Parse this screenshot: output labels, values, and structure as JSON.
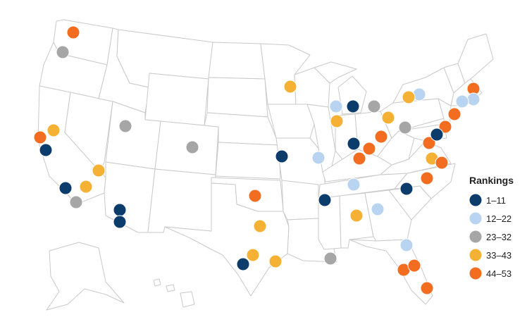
{
  "legend": {
    "title": "Rankings",
    "items": [
      {
        "label": "1–11",
        "color": "#0b3c6b"
      },
      {
        "label": "12–22",
        "color": "#b8d4f1"
      },
      {
        "label": "23–32",
        "color": "#a6a6a6"
      },
      {
        "label": "33–43",
        "color": "#f5b133"
      },
      {
        "label": "44–53",
        "color": "#f36d21"
      }
    ]
  },
  "markers": [
    {
      "tier": 3
    },
    {
      "tier": 1
    },
    {
      "tier": 4
    },
    {
      "tier": 2
    },
    {
      "tier": 4
    },
    {
      "tier": 4
    },
    {
      "tier": 2
    },
    {
      "tier": 2
    },
    {
      "tier": 2
    },
    {
      "tier": 3
    },
    {
      "tier": 3
    },
    {
      "tier": 1
    },
    {
      "tier": 3
    },
    {
      "tier": 1
    },
    {
      "tier": 2
    },
    {
      "tier": 3
    },
    {
      "tier": 4
    },
    {
      "tier": 0
    },
    {
      "tier": 0
    },
    {
      "tier": 1
    },
    {
      "tier": 0
    },
    {
      "tier": 4
    },
    {
      "tier": 3
    },
    {
      "tier": 3
    },
    {
      "tier": 3
    },
    {
      "tier": 2
    },
    {
      "tier": 0
    },
    {
      "tier": 4
    },
    {
      "tier": 1
    },
    {
      "tier": 3
    },
    {
      "tier": 1
    },
    {
      "tier": 0
    },
    {
      "tier": 0
    },
    {
      "tier": 3
    },
    {
      "tier": 0
    },
    {
      "tier": 0
    },
    {
      "tier": 1
    },
    {
      "tier": 2
    },
    {
      "tier": 4
    },
    {
      "tier": 4
    },
    {
      "tier": 4
    },
    {
      "tier": 4
    },
    {
      "tier": 3
    },
    {
      "tier": 4
    },
    {
      "tier": 4
    },
    {
      "tier": 1
    },
    {
      "tier": 0
    },
    {
      "tier": 4
    },
    {
      "tier": 4
    },
    {
      "tier": 4
    },
    {
      "tier": 0
    },
    {
      "tier": 3
    },
    {
      "tier": 0
    }
  ]
}
